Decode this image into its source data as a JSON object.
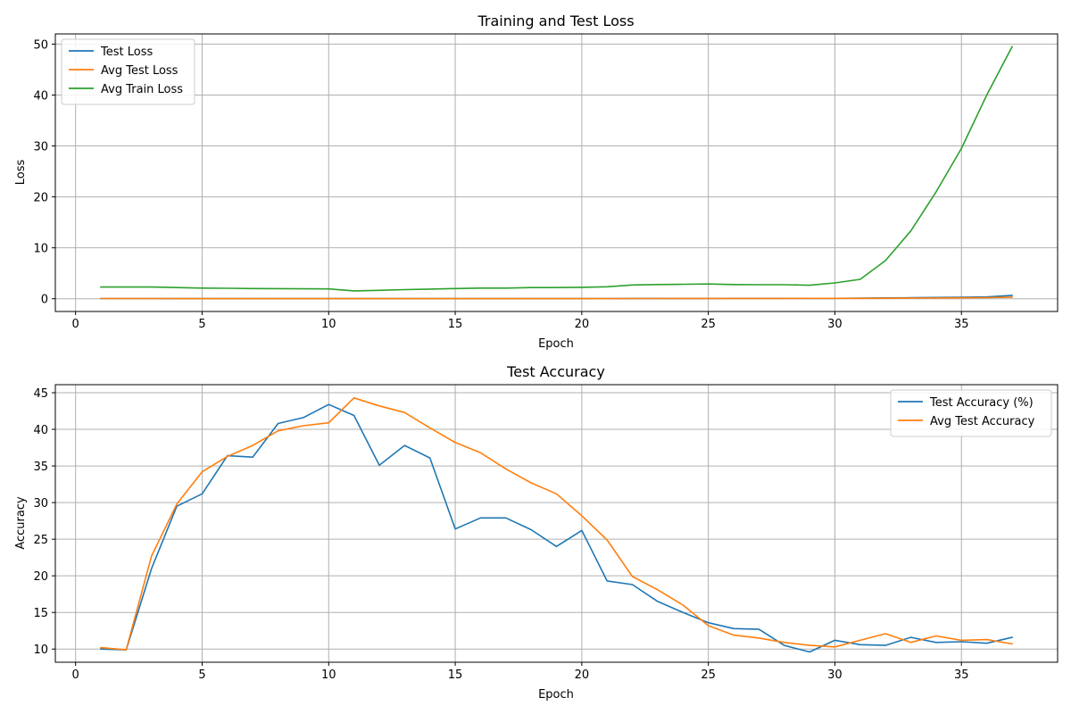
{
  "chart_data": [
    {
      "type": "line",
      "title": "Training and Test Loss",
      "xlabel": "Epoch",
      "ylabel": "Loss",
      "xlim": [
        -0.8,
        38.8
      ],
      "ylim": [
        -2.5,
        52
      ],
      "xticks": [
        0,
        5,
        10,
        15,
        20,
        25,
        30,
        35
      ],
      "yticks": [
        0,
        10,
        20,
        30,
        40,
        50
      ],
      "grid": true,
      "legend_position": "upper-left",
      "x": [
        1,
        2,
        3,
        4,
        5,
        6,
        7,
        8,
        9,
        10,
        11,
        12,
        13,
        14,
        15,
        16,
        17,
        18,
        19,
        20,
        21,
        22,
        23,
        24,
        25,
        26,
        27,
        28,
        29,
        30,
        31,
        32,
        33,
        34,
        35,
        36,
        37
      ],
      "series": [
        {
          "name": "Test Loss",
          "color": "#1f77b4",
          "values": [
            0.04,
            0.04,
            0.04,
            0.03,
            0.03,
            0.03,
            0.03,
            0.02,
            0.02,
            0.02,
            0.02,
            0.02,
            0.02,
            0.02,
            0.02,
            0.02,
            0.02,
            0.02,
            0.03,
            0.03,
            0.04,
            0.05,
            0.05,
            0.06,
            0.06,
            0.07,
            0.07,
            0.07,
            0.08,
            0.08,
            0.12,
            0.16,
            0.2,
            0.25,
            0.3,
            0.35,
            0.65
          ]
        },
        {
          "name": "Avg Test Loss",
          "color": "#ff7f0e",
          "values": [
            0.04,
            0.04,
            0.04,
            0.03,
            0.03,
            0.03,
            0.03,
            0.03,
            0.02,
            0.02,
            0.02,
            0.02,
            0.02,
            0.02,
            0.02,
            0.02,
            0.02,
            0.02,
            0.02,
            0.03,
            0.03,
            0.04,
            0.04,
            0.05,
            0.05,
            0.06,
            0.06,
            0.06,
            0.07,
            0.07,
            0.08,
            0.1,
            0.12,
            0.15,
            0.18,
            0.22,
            0.3
          ]
        },
        {
          "name": "Avg Train Loss",
          "color": "#2ca02c",
          "values": [
            2.3,
            2.3,
            2.3,
            2.2,
            2.1,
            2.05,
            2.0,
            1.98,
            1.95,
            1.93,
            1.55,
            1.65,
            1.8,
            1.9,
            2.0,
            2.1,
            2.1,
            2.2,
            2.2,
            2.25,
            2.35,
            2.7,
            2.8,
            2.85,
            2.9,
            2.8,
            2.75,
            2.75,
            2.65,
            3.1,
            3.8,
            7.5,
            13.3,
            21.0,
            29.5,
            40.0,
            49.5
          ]
        }
      ]
    },
    {
      "type": "line",
      "title": "Test Accuracy",
      "xlabel": "Epoch",
      "ylabel": "Accuracy",
      "xlim": [
        -0.8,
        38.8
      ],
      "ylim": [
        8.2,
        46.1
      ],
      "xticks": [
        0,
        5,
        10,
        15,
        20,
        25,
        30,
        35
      ],
      "yticks": [
        10,
        15,
        20,
        25,
        30,
        35,
        40,
        45
      ],
      "grid": true,
      "legend_position": "upper-right",
      "x": [
        1,
        2,
        3,
        4,
        5,
        6,
        7,
        8,
        9,
        10,
        11,
        12,
        13,
        14,
        15,
        16,
        17,
        18,
        19,
        20,
        21,
        22,
        23,
        24,
        25,
        26,
        27,
        28,
        29,
        30,
        31,
        32,
        33,
        34,
        35,
        36,
        37
      ],
      "series": [
        {
          "name": "Test Accuracy (%)",
          "color": "#1f77b4",
          "values": [
            10.0,
            9.9,
            21.0,
            29.5,
            31.2,
            36.4,
            36.2,
            40.8,
            41.6,
            43.4,
            41.9,
            35.1,
            37.8,
            36.1,
            26.4,
            27.9,
            27.9,
            26.3,
            24.0,
            26.2,
            19.3,
            18.8,
            16.5,
            15.0,
            13.6,
            12.8,
            12.7,
            10.5,
            9.6,
            11.2,
            10.6,
            10.5,
            11.6,
            10.9,
            11.0,
            10.8,
            11.6
          ]
        },
        {
          "name": "Avg Test Accuracy",
          "color": "#ff7f0e",
          "values": [
            10.2,
            9.9,
            22.7,
            29.8,
            34.2,
            36.3,
            37.8,
            39.8,
            40.5,
            40.9,
            44.3,
            43.2,
            42.3,
            40.2,
            38.2,
            36.8,
            34.6,
            32.7,
            31.2,
            28.2,
            24.9,
            19.9,
            18.1,
            16.0,
            13.2,
            11.9,
            11.5,
            10.9,
            10.5,
            10.3,
            11.2,
            12.1,
            10.9,
            11.8,
            11.2,
            11.3,
            10.7
          ]
        }
      ]
    }
  ]
}
